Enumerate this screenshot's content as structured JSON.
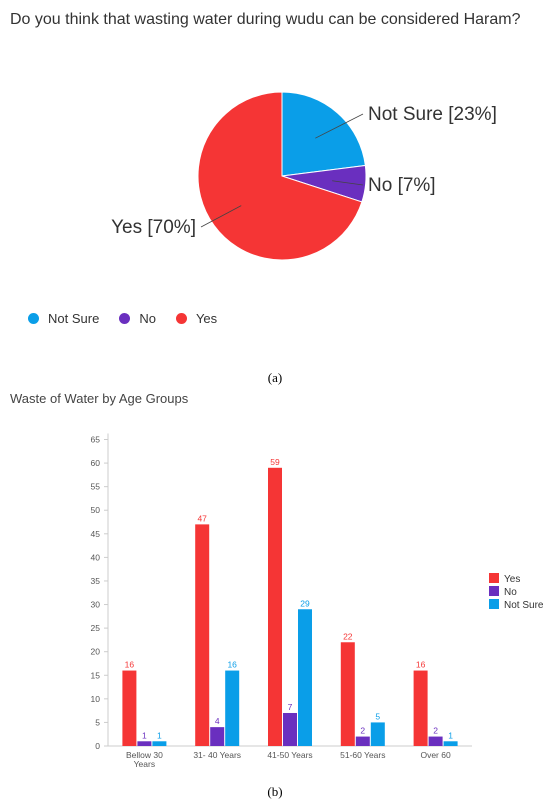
{
  "chart_data": [
    {
      "type": "pie",
      "title": "Do you think that wasting water during wudu can be considered Haram?",
      "slices": [
        {
          "name": "Not Sure",
          "value": 23,
          "label": "Not Sure [23%]",
          "color": "#0a9ee8"
        },
        {
          "name": "No",
          "value": 7,
          "label": "No [7%]",
          "color": "#6a2fbf"
        },
        {
          "name": "Yes",
          "value": 70,
          "label": "Yes [70%]",
          "color": "#f53535"
        }
      ],
      "legend": [
        "Not Sure",
        "No",
        "Yes"
      ],
      "legend_position": "bottom-left"
    },
    {
      "type": "bar",
      "title": "Waste of Water by Age Groups",
      "categories": [
        "Bellow 30 Years",
        "31- 40 Years",
        "41-50 Years",
        "51-60 Years",
        "Over 60"
      ],
      "series": [
        {
          "name": "Yes",
          "values": [
            16,
            47,
            59,
            22,
            16
          ],
          "color": "#f53535"
        },
        {
          "name": "No",
          "values": [
            1,
            4,
            7,
            2,
            2
          ],
          "color": "#6a2fbf"
        },
        {
          "name": "Not Sure",
          "values": [
            1,
            16,
            29,
            5,
            1
          ],
          "color": "#0a9ee8"
        }
      ],
      "yticks": [
        0,
        5,
        10,
        15,
        20,
        25,
        30,
        35,
        40,
        45,
        50,
        55,
        60,
        65
      ],
      "ylim": [
        0,
        65
      ],
      "grid": false,
      "legend_position": "right"
    }
  ],
  "captions": {
    "a": "(a)",
    "b": "(b)"
  }
}
